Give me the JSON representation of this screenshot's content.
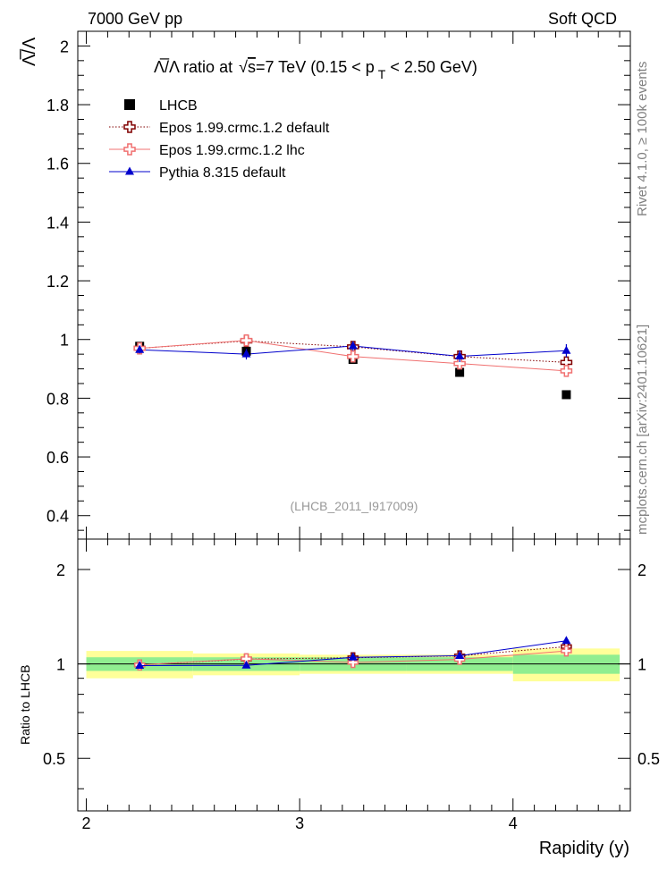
{
  "header": {
    "left": "7000 GeV pp",
    "right": "Soft QCD"
  },
  "side_text": {
    "rivet": "Rivet 4.1.0, ≥ 100k events",
    "mcplots": "mcplots.cern.ch [arXiv:2401.10621]"
  },
  "watermark": "(LHCB_2011_I917009)",
  "chart_data": {
    "type": "line",
    "title": "Λ̅/Λ ratio at √s=7 TeV (0.15 < p_T < 2.50 GeV)",
    "title_parts": {
      "main": "Λ̅/Λ ratio at ",
      "sqrt": "√",
      "s": "s",
      "rest": "=7 TeV (0.15 < p",
      "sub": "T",
      "end": " < 2.50 GeV)"
    },
    "ylabel": "Λ̅/Λ",
    "xlabel": "Rapidity (y)",
    "ratio_ylabel": "Ratio to LHCB",
    "xlim": [
      1.96,
      4.55
    ],
    "ylim": [
      0.32,
      2.05
    ],
    "ratio_ylim": [
      0.34,
      2.5
    ],
    "x_ticks": [
      2,
      3,
      4
    ],
    "x_tick_labels": [
      "2",
      "3",
      "4"
    ],
    "y_ticks": [
      0.4,
      0.6,
      0.8,
      1,
      1.2,
      1.4,
      1.6,
      1.8,
      2
    ],
    "y_tick_labels": [
      "0.4",
      "0.6",
      "0.8",
      "1",
      "1.2",
      "1.4",
      "1.6",
      "1.8",
      "2"
    ],
    "ratio_ticks": [
      0.5,
      1,
      2
    ],
    "ratio_tick_labels": [
      "0.5",
      "1",
      "2"
    ],
    "bins": [
      [
        2.0,
        2.5
      ],
      [
        2.5,
        3.0
      ],
      [
        3.0,
        3.5
      ],
      [
        3.5,
        4.0
      ],
      [
        4.0,
        4.5
      ]
    ],
    "x": [
      2.25,
      2.75,
      3.25,
      3.75,
      4.25
    ],
    "reference": {
      "name": "LHCB",
      "values": [
        0.977,
        0.96,
        0.932,
        0.888,
        0.812
      ],
      "band_inner": [
        0.05,
        0.05,
        0.05,
        0.05,
        0.07
      ],
      "band_outer": [
        0.1,
        0.08,
        0.07,
        0.07,
        0.12
      ]
    },
    "series": [
      {
        "name": "Epos 1.99.crmc.1.2 default",
        "color": "#800000",
        "marker": "cross-open",
        "dash": "dotted",
        "values": [
          0.97,
          0.995,
          0.975,
          0.942,
          0.922
        ],
        "errors": [
          0.01,
          0.012,
          0.012,
          0.012,
          0.014
        ]
      },
      {
        "name": "Epos 1.99.crmc.1.2 lhc",
        "color": "#f07070",
        "marker": "cross-open",
        "dash": "solid",
        "values": [
          0.97,
          0.997,
          0.942,
          0.918,
          0.893
        ],
        "errors": [
          0.01,
          0.012,
          0.012,
          0.012,
          0.014
        ]
      },
      {
        "name": "Pythia 8.315 default",
        "color": "#0000cc",
        "marker": "triangle",
        "dash": "solid",
        "values": [
          0.965,
          0.95,
          0.978,
          0.943,
          0.962
        ],
        "errors": [
          0.012,
          0.018,
          0.016,
          0.02,
          0.022
        ]
      }
    ]
  },
  "colors": {
    "band_inner": "#90ee90",
    "band_outer": "#ffff99",
    "watermark": "#999999",
    "side_text": "#808080"
  }
}
